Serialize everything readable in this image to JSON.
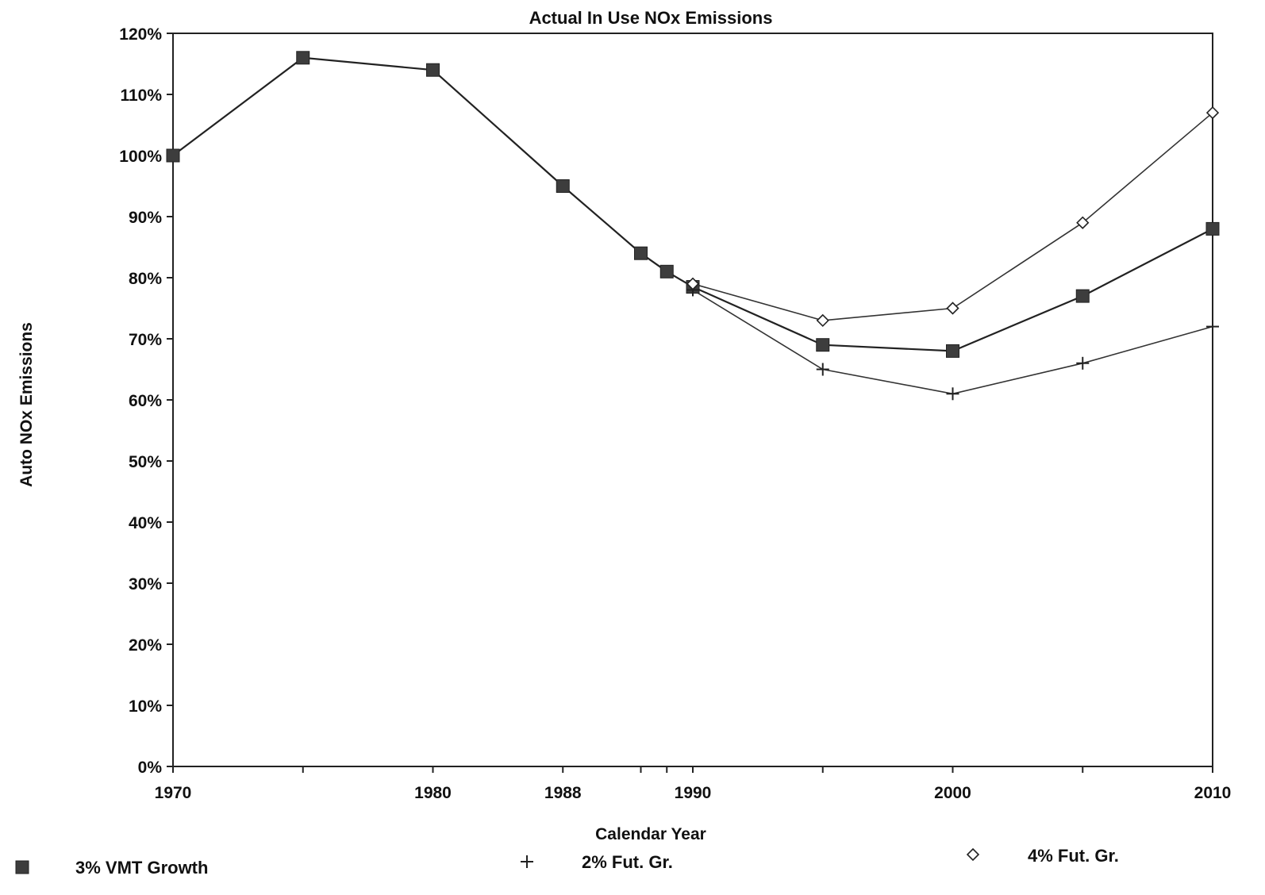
{
  "chart_data": {
    "type": "line",
    "title": "Actual In Use NOx Emissions",
    "xlabel": "Calendar Year",
    "ylabel": "Auto NOx Emissions",
    "x": [
      1970,
      1975,
      1980,
      1985,
      1988,
      1989,
      1990,
      1995,
      2000,
      2005,
      2010
    ],
    "x_tick_labels": [
      "1970",
      "1980",
      "1988",
      "1990",
      "2000",
      "2010"
    ],
    "y_tick_labels": [
      "0%",
      "10%",
      "20%",
      "30%",
      "40%",
      "50%",
      "60%",
      "70%",
      "80%",
      "90%",
      "100%",
      "110%",
      "120%"
    ],
    "ylim": [
      0,
      120
    ],
    "grid": false,
    "legend_position": "bottom",
    "series": [
      {
        "name": "3% VMT Growth",
        "marker": "square",
        "values": [
          100,
          116,
          114,
          95,
          84,
          81,
          78.5,
          69,
          68,
          77,
          88
        ]
      },
      {
        "name": "2% Fut. Gr.",
        "marker": "plus",
        "values": [
          null,
          null,
          null,
          null,
          null,
          null,
          78,
          65,
          61,
          66,
          72
        ]
      },
      {
        "name": "4% Fut. Gr.",
        "marker": "diamond",
        "values": [
          null,
          null,
          null,
          null,
          null,
          null,
          79,
          73,
          75,
          89,
          107
        ]
      }
    ]
  }
}
